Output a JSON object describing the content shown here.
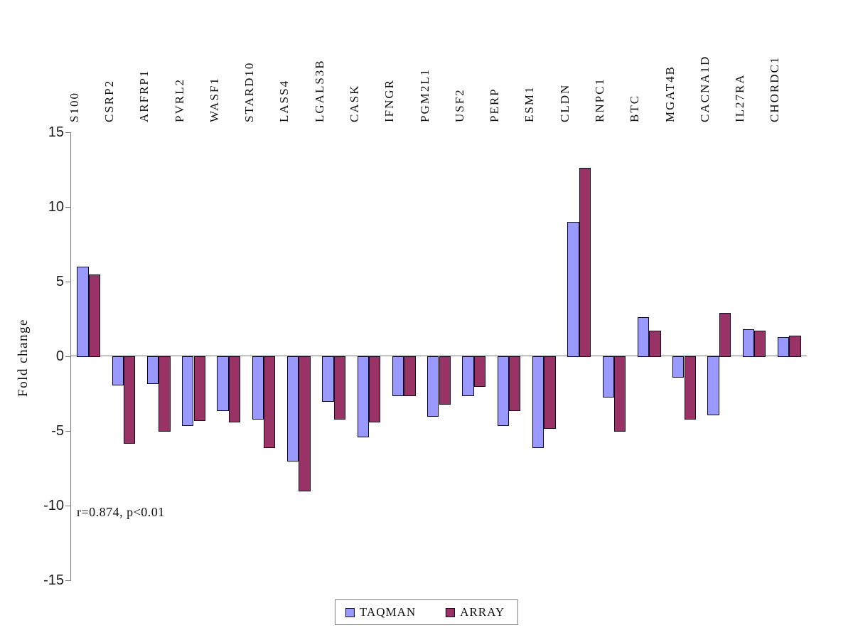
{
  "chart_data": {
    "type": "bar",
    "title": "",
    "xlabel": "",
    "ylabel": "Fold change",
    "ylim": [
      -15,
      15
    ],
    "yticks": [
      15,
      10,
      5,
      0,
      -5,
      -10,
      -15
    ],
    "grid": false,
    "legend_position": "bottom",
    "annotation": "r=0.874, p<0.01",
    "bar_border_color": "#0b0b23",
    "axis_color": "#7b7b7b",
    "categories": [
      "S100",
      "CSRP2",
      "ARFRP1",
      "PVRL2",
      "WASF1",
      "STARD10",
      "LASS4",
      "LGALS3B",
      "CASK",
      "IFNGR",
      "PGM2L1",
      "USF2",
      "PERP",
      "ESM1",
      "CLDN",
      "RNPC1",
      "BTC",
      "MGAT4B",
      "CACNA1D",
      "IL27RA",
      "CHORDC1"
    ],
    "series": [
      {
        "name": "TAQMAN",
        "color": "#9999FF",
        "values": [
          6.0,
          -1.9,
          -1.8,
          -4.6,
          -3.6,
          -4.2,
          -7.0,
          -3.0,
          -5.4,
          -2.6,
          -4.0,
          -2.6,
          -4.6,
          -6.1,
          9.0,
          -2.7,
          2.6,
          -1.4,
          -3.9,
          1.8,
          1.3
        ]
      },
      {
        "name": "ARRAY",
        "color": "#993366",
        "values": [
          5.5,
          -5.8,
          -5.0,
          -4.3,
          -4.4,
          -6.1,
          -9.0,
          -4.2,
          -4.4,
          -2.6,
          -3.2,
          -2.0,
          -3.6,
          -4.8,
          12.6,
          -5.0,
          1.7,
          -4.2,
          2.9,
          1.7,
          1.4
        ]
      }
    ]
  },
  "legend": {
    "items": [
      {
        "label": "TAQMAN",
        "swatch_color": "#9999FF"
      },
      {
        "label": "ARRAY",
        "swatch_color": "#993366"
      }
    ]
  }
}
